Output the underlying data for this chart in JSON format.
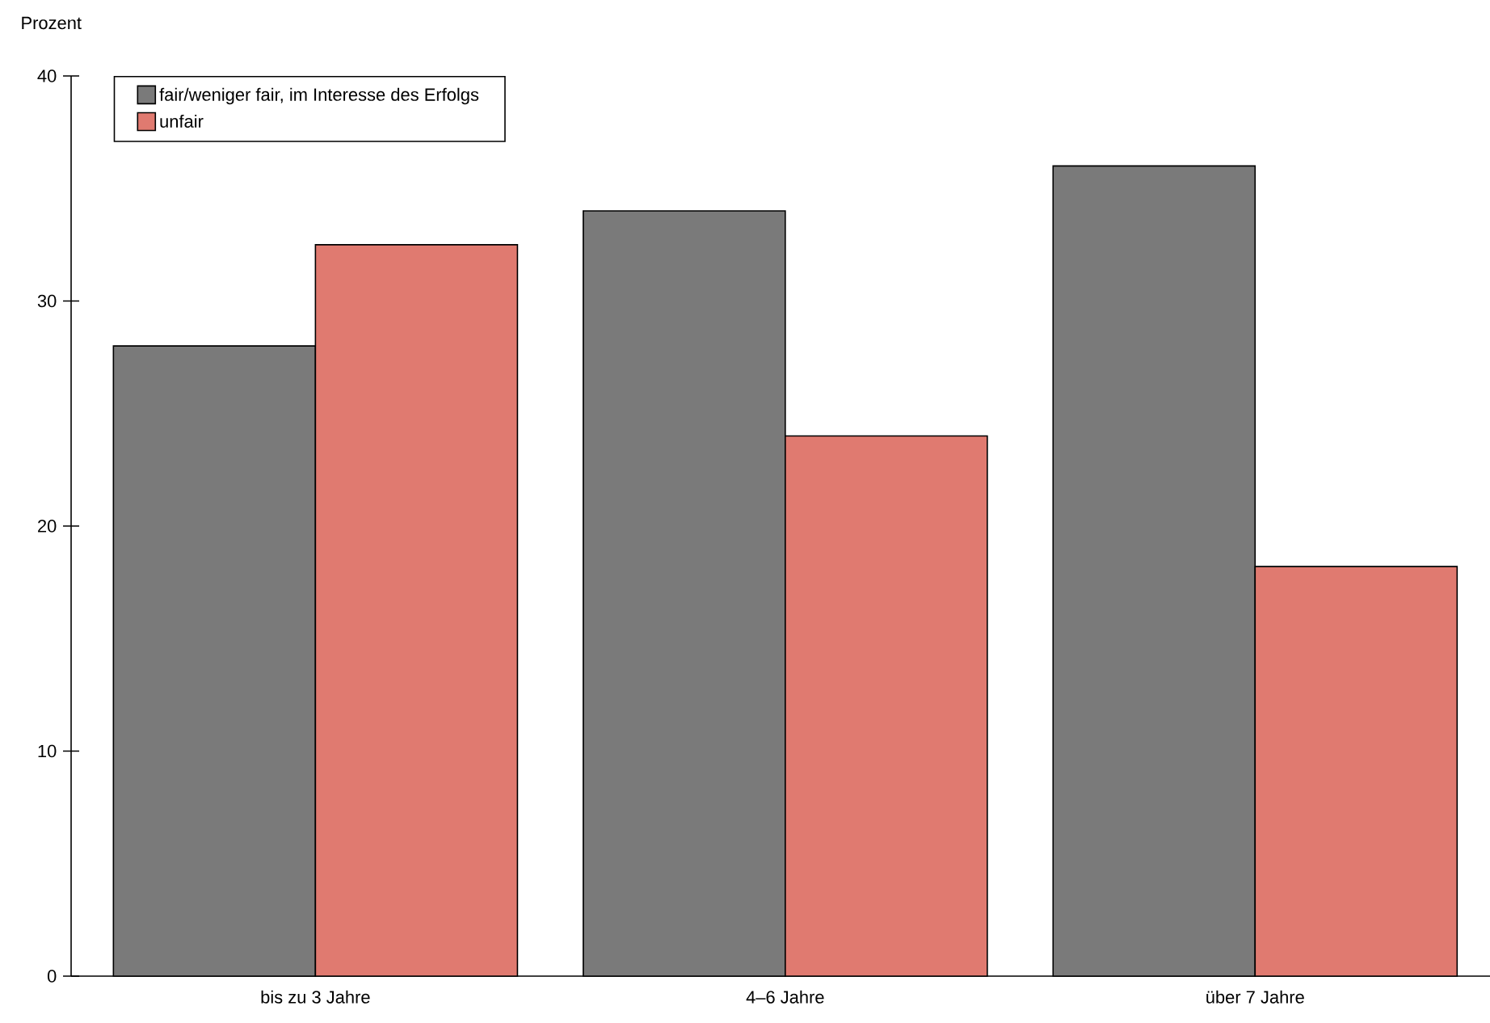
{
  "chart_data": {
    "type": "bar",
    "ylabel": "Prozent",
    "categories": [
      "bis zu 3 Jahre",
      "4–6 Jahre",
      "über 7 Jahre"
    ],
    "series": [
      {
        "name": "fair/weniger fair, im Interesse des Erfolgs",
        "color": "#7a7a7a",
        "values": [
          28,
          34,
          36
        ]
      },
      {
        "name": "unfair",
        "color": "#e07a70",
        "values": [
          32.5,
          24,
          18.2
        ]
      }
    ],
    "ylim": [
      0,
      40
    ],
    "yticks": [
      0,
      10,
      20,
      30,
      40
    ],
    "legend": "top left"
  }
}
